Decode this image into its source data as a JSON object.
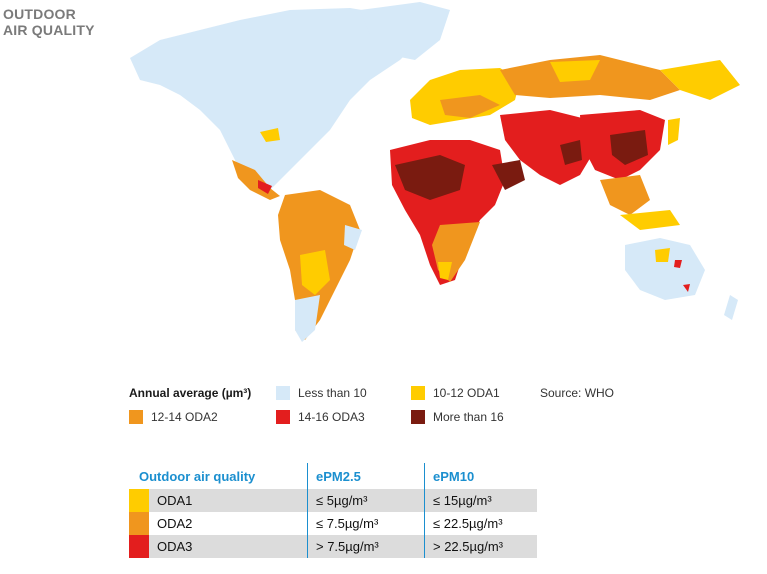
{
  "title_line1": "OUTDOOR",
  "title_line2": "AIR QUALITY",
  "legend": {
    "heading": "Annual average (µm³)",
    "source": "Source: WHO",
    "items": [
      {
        "label": "Less than 10",
        "color": "#d6e9f8"
      },
      {
        "label": "10-12 ODA1",
        "color": "#ffcc00"
      },
      {
        "label": "12-14 ODA2",
        "color": "#f0961e"
      },
      {
        "label": "14-16 ODA3",
        "color": "#e31e1e"
      },
      {
        "label": "More than 16",
        "color": "#7a1b10"
      }
    ]
  },
  "table": {
    "headers": [
      "Outdoor air quality",
      "ePM2.5",
      "ePM10"
    ],
    "rows": [
      {
        "name": "ODA1",
        "pm25": "≤ 5µg/m³",
        "pm10": "≤ 15µg/m³",
        "color": "#ffcc00"
      },
      {
        "name": "ODA2",
        "pm25": "≤ 7.5µg/m³",
        "pm10": "≤ 22.5µg/m³",
        "color": "#f0961e"
      },
      {
        "name": "ODA3",
        "pm25": "> 7.5µg/m³",
        "pm10": "> 22.5µg/m³",
        "color": "#e31e1e"
      }
    ]
  }
}
